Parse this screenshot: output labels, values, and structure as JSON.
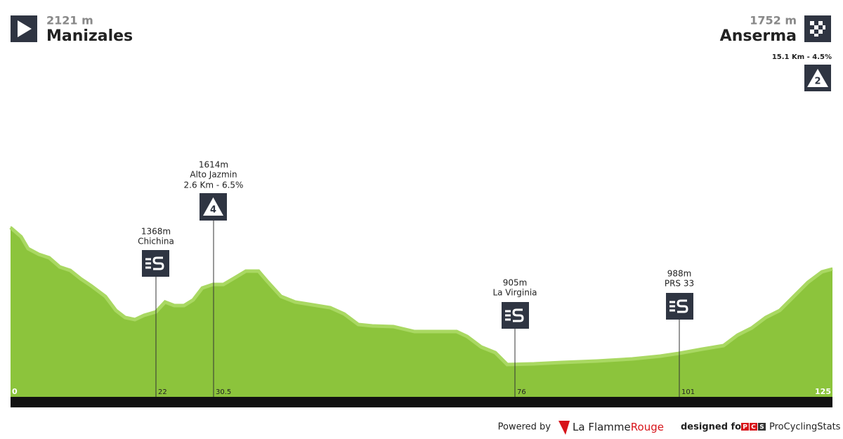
{
  "start": {
    "elevation": "2121 m",
    "name": "Manizales"
  },
  "finish": {
    "elevation": "1752 m",
    "name": "Anserma",
    "climb": "15.1 Km - 4.5%",
    "category": "2"
  },
  "waypoints": [
    {
      "elevation": "1368m",
      "name": "Chichina",
      "km": "22"
    },
    {
      "elevation": "1614m",
      "name": "Alto Jazmin",
      "climb": "2.6 Km - 6.5%",
      "category": "4",
      "km": "30.5"
    },
    {
      "elevation": "905m",
      "name": "La Virginia",
      "km": "76"
    },
    {
      "elevation": "988m",
      "name": "PRS 33",
      "km": "101"
    }
  ],
  "distance": {
    "start": "0",
    "end": "125"
  },
  "footer": {
    "powered_by": "Powered by",
    "brand": "La Flamme",
    "brand_accent": "Rouge",
    "designed_for": "designed for",
    "pcs_logo": [
      "P",
      "C",
      "S"
    ],
    "pcs_name": "ProCyclingStats"
  }
}
